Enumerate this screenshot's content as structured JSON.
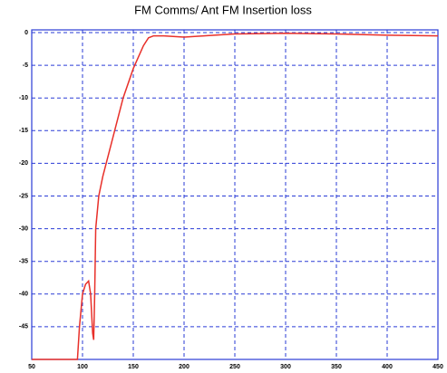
{
  "chart_data": {
    "type": "line",
    "title": "FM Comms/ Ant FM Insertion loss",
    "series": [
      {
        "color": "#e8302a",
        "x": [
          50,
          95,
          97,
          100,
          103,
          106,
          108,
          110,
          111,
          112,
          113,
          116,
          120,
          130,
          140,
          150,
          160,
          165,
          170,
          180,
          200,
          230,
          250,
          300,
          350,
          400,
          450
        ],
        "values": [
          -50,
          -50,
          -45,
          -40,
          -38.5,
          -38,
          -40,
          -46,
          -47,
          -40,
          -30,
          -25,
          -22,
          -16,
          -10,
          -5.5,
          -2,
          -0.8,
          -0.5,
          -0.5,
          -0.7,
          -0.4,
          -0.2,
          -0.1,
          -0.2,
          -0.4,
          -0.5
        ]
      }
    ],
    "xlim": [
      50,
      450
    ],
    "xticks": [
      50,
      100,
      150,
      200,
      250,
      300,
      350,
      400,
      450
    ],
    "ylim": [
      -50,
      0
    ],
    "yticks": [
      0,
      -5,
      -10,
      -15,
      -20,
      -25,
      -30,
      -35,
      -40,
      -45
    ],
    "grid": true
  }
}
